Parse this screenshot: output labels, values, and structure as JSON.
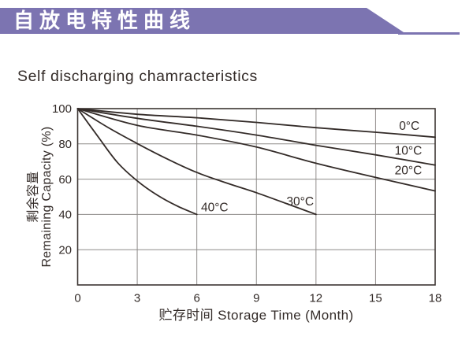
{
  "banner": {
    "label": "自放电特性曲线",
    "color": "#7C74B1"
  },
  "title": "Self discharging chamracteristics",
  "chart_data": {
    "type": "line",
    "title": "Self discharging chamracteristics",
    "xlabel": "贮存时间 Storage Time (Month)",
    "ylabel_cn": "剩余容量",
    "ylabel_en": "Remaining Capacity (%)",
    "xlim": [
      0,
      18
    ],
    "ylim": [
      0,
      100
    ],
    "xticks": [
      "0",
      "3",
      "6",
      "9",
      "12",
      "15",
      "18"
    ],
    "xtick_values": [
      0,
      3,
      6,
      9,
      12,
      15,
      18
    ],
    "yticks": [
      "100",
      "80",
      "60",
      "40",
      "20"
    ],
    "ytick_values": [
      100,
      80,
      60,
      40,
      20
    ],
    "grid": true,
    "legend_position": "inline-labels",
    "line_color": "#332B28",
    "grid_color": "#8E8B89",
    "border_color": "#3C3532",
    "series": [
      {
        "name": "0°C",
        "label": "0°C",
        "label_at": [
          16.7,
          90.3
        ],
        "points": [
          [
            0,
            100
          ],
          [
            3,
            96.8
          ],
          [
            6,
            94.8
          ],
          [
            9,
            92.2
          ],
          [
            12,
            89.2
          ],
          [
            15,
            86.6
          ],
          [
            18,
            83.8
          ]
        ]
      },
      {
        "name": "10°C",
        "label": "10°C",
        "label_at": [
          16.65,
          76.3
        ],
        "points": [
          [
            0,
            100
          ],
          [
            3,
            94.5
          ],
          [
            6,
            90
          ],
          [
            9,
            85
          ],
          [
            12,
            79.2
          ],
          [
            15,
            73.8
          ],
          [
            18,
            68
          ]
        ]
      },
      {
        "name": "20°C",
        "label": "20°C",
        "label_at": [
          16.65,
          65.2
        ],
        "points": [
          [
            0,
            100
          ],
          [
            3,
            90.5
          ],
          [
            6,
            85
          ],
          [
            9,
            78.2
          ],
          [
            12,
            69
          ],
          [
            15,
            61
          ],
          [
            18,
            53.3
          ]
        ]
      },
      {
        "name": "30°C",
        "label": "30°C",
        "label_at": [
          11.2,
          47.6
        ],
        "points": [
          [
            0,
            100
          ],
          [
            1.5,
            89.5
          ],
          [
            3,
            80.2
          ],
          [
            4.5,
            71.5
          ],
          [
            6,
            63.8
          ],
          [
            7.5,
            57.8
          ],
          [
            9,
            52.3
          ],
          [
            10.5,
            46.2
          ],
          [
            12,
            40
          ]
        ]
      },
      {
        "name": "40°C",
        "label": "40°C",
        "label_at": [
          6.9,
          44.3
        ],
        "points": [
          [
            0,
            100
          ],
          [
            1,
            84.5
          ],
          [
            2,
            69.5
          ],
          [
            3,
            59
          ],
          [
            4,
            51
          ],
          [
            5,
            44.8
          ],
          [
            6,
            40
          ]
        ]
      }
    ]
  }
}
